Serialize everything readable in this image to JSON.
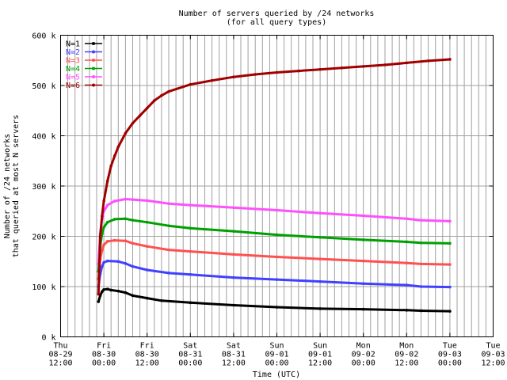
{
  "chart_data": {
    "type": "line",
    "title": "Number of servers queried by /24 networks",
    "subtitle": "(for all query types)",
    "xlabel": "Time (UTC)",
    "ylabel_lines": [
      "Number of /24 networks",
      "that queried at most N servers"
    ],
    "ylim": [
      0,
      600000
    ],
    "yticks": [
      {
        "value": 0,
        "label": "0 k"
      },
      {
        "value": 100000,
        "label": "100 k"
      },
      {
        "value": 200000,
        "label": "200 k"
      },
      {
        "value": 300000,
        "label": "300 k"
      },
      {
        "value": 400000,
        "label": "400 k"
      },
      {
        "value": 500000,
        "label": "500 k"
      },
      {
        "value": 600000,
        "label": "600 k"
      }
    ],
    "xlim_hours": [
      0,
      120
    ],
    "xticks": [
      {
        "hour": 0,
        "lines": [
          "Thu",
          "08-29",
          "12:00"
        ]
      },
      {
        "hour": 12,
        "lines": [
          "Fri",
          "08-30",
          "00:00"
        ]
      },
      {
        "hour": 24,
        "lines": [
          "Fri",
          "08-30",
          "12:00"
        ]
      },
      {
        "hour": 36,
        "lines": [
          "Sat",
          "08-31",
          "00:00"
        ]
      },
      {
        "hour": 48,
        "lines": [
          "Sat",
          "08-31",
          "12:00"
        ]
      },
      {
        "hour": 60,
        "lines": [
          "Sun",
          "09-01",
          "00:00"
        ]
      },
      {
        "hour": 72,
        "lines": [
          "Sun",
          "09-01",
          "12:00"
        ]
      },
      {
        "hour": 84,
        "lines": [
          "Mon",
          "09-02",
          "00:00"
        ]
      },
      {
        "hour": 96,
        "lines": [
          "Mon",
          "09-02",
          "12:00"
        ]
      },
      {
        "hour": 108,
        "lines": [
          "Tue",
          "09-03",
          "00:00"
        ]
      },
      {
        "hour": 120,
        "lines": [
          "Tue",
          "09-03",
          "12:00"
        ]
      }
    ],
    "minor_grid_hours": 2,
    "legend_position": "top-left",
    "series": [
      {
        "name": "N=1",
        "color": "#000000",
        "points": [
          [
            10.5,
            70000
          ],
          [
            11,
            82000
          ],
          [
            11.5,
            90000
          ],
          [
            12,
            94000
          ],
          [
            13,
            95000
          ],
          [
            14,
            93000
          ],
          [
            16,
            91000
          ],
          [
            18,
            88000
          ],
          [
            20,
            82000
          ],
          [
            24,
            77000
          ],
          [
            28,
            72000
          ],
          [
            36,
            68000
          ],
          [
            48,
            63000
          ],
          [
            60,
            59000
          ],
          [
            72,
            56000
          ],
          [
            84,
            55000
          ],
          [
            96,
            53000
          ],
          [
            100,
            52000
          ],
          [
            108,
            51000
          ]
        ]
      },
      {
        "name": "N=2",
        "color": "#4040ff",
        "points": [
          [
            10.5,
            100000
          ],
          [
            11,
            125000
          ],
          [
            11.5,
            140000
          ],
          [
            12,
            148000
          ],
          [
            13,
            151000
          ],
          [
            16,
            150000
          ],
          [
            18,
            146000
          ],
          [
            20,
            140000
          ],
          [
            24,
            133000
          ],
          [
            30,
            127000
          ],
          [
            36,
            124000
          ],
          [
            48,
            118000
          ],
          [
            60,
            114000
          ],
          [
            72,
            110000
          ],
          [
            84,
            106000
          ],
          [
            96,
            103000
          ],
          [
            100,
            100000
          ],
          [
            108,
            99000
          ]
        ]
      },
      {
        "name": "N=3",
        "color": "#ff5050",
        "points": [
          [
            10.5,
            115000
          ],
          [
            11,
            155000
          ],
          [
            11.5,
            172000
          ],
          [
            12,
            183000
          ],
          [
            13,
            190000
          ],
          [
            15,
            192000
          ],
          [
            18,
            191000
          ],
          [
            20,
            186000
          ],
          [
            24,
            180000
          ],
          [
            30,
            173000
          ],
          [
            36,
            170000
          ],
          [
            48,
            164000
          ],
          [
            60,
            159000
          ],
          [
            72,
            155000
          ],
          [
            84,
            151000
          ],
          [
            96,
            147000
          ],
          [
            100,
            145000
          ],
          [
            108,
            144000
          ]
        ]
      },
      {
        "name": "N=4",
        "color": "#00a000",
        "points": [
          [
            10.5,
            130000
          ],
          [
            11,
            180000
          ],
          [
            11.5,
            205000
          ],
          [
            12,
            218000
          ],
          [
            13,
            228000
          ],
          [
            15,
            234000
          ],
          [
            18,
            235000
          ],
          [
            20,
            232000
          ],
          [
            24,
            228000
          ],
          [
            30,
            221000
          ],
          [
            36,
            216000
          ],
          [
            48,
            210000
          ],
          [
            60,
            203000
          ],
          [
            72,
            198000
          ],
          [
            84,
            193000
          ],
          [
            96,
            189000
          ],
          [
            100,
            187000
          ],
          [
            108,
            186000
          ]
        ]
      },
      {
        "name": "N=5",
        "color": "#ff50ff",
        "points": [
          [
            10.5,
            145000
          ],
          [
            11,
            205000
          ],
          [
            11.5,
            235000
          ],
          [
            12,
            250000
          ],
          [
            13,
            262000
          ],
          [
            15,
            270000
          ],
          [
            18,
            274000
          ],
          [
            20,
            273000
          ],
          [
            24,
            271000
          ],
          [
            30,
            265000
          ],
          [
            36,
            262000
          ],
          [
            48,
            257000
          ],
          [
            60,
            252000
          ],
          [
            72,
            246000
          ],
          [
            84,
            241000
          ],
          [
            96,
            235000
          ],
          [
            100,
            232000
          ],
          [
            108,
            230000
          ]
        ]
      },
      {
        "name": "N=6",
        "color": "#a00000",
        "points": [
          [
            10.5,
            85000
          ],
          [
            11,
            200000
          ],
          [
            11.5,
            240000
          ],
          [
            12,
            270000
          ],
          [
            13,
            310000
          ],
          [
            14,
            340000
          ],
          [
            15,
            360000
          ],
          [
            16,
            378000
          ],
          [
            18,
            405000
          ],
          [
            20,
            425000
          ],
          [
            22,
            440000
          ],
          [
            24,
            455000
          ],
          [
            26,
            470000
          ],
          [
            28,
            480000
          ],
          [
            30,
            488000
          ],
          [
            36,
            502000
          ],
          [
            42,
            510000
          ],
          [
            48,
            517000
          ],
          [
            54,
            522000
          ],
          [
            60,
            526000
          ],
          [
            66,
            529000
          ],
          [
            72,
            532000
          ],
          [
            78,
            535000
          ],
          [
            84,
            538000
          ],
          [
            90,
            541000
          ],
          [
            96,
            545000
          ],
          [
            102,
            549000
          ],
          [
            108,
            552000
          ]
        ]
      }
    ]
  }
}
